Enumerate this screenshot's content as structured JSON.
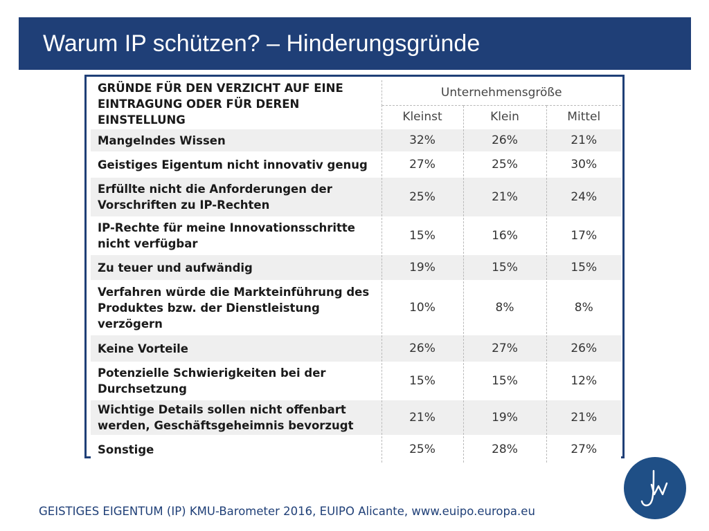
{
  "slide": {
    "title": "Warum IP schützen? – Hinderungsgründe",
    "footer": "GEISTIGES EIGENTUM (IP) KMU-Barometer 2016, EUIPO Alicante, www.euipo.europa.eu",
    "logo_icon": "jw-monogram-logo"
  },
  "table": {
    "header_label": "GRÜNDE FÜR DEN VERZICHT AUF EINE EINTRAGUNG ODER FÜR DEREN EINSTELLUNG",
    "group_header": "Unternehmensgröße",
    "columns": [
      "Kleinst",
      "Klein",
      "Mittel"
    ],
    "rows": [
      {
        "label": "Mangelndes Wissen",
        "values": [
          "32%",
          "26%",
          "21%"
        ]
      },
      {
        "label": "Geistiges Eigentum nicht innovativ genug",
        "values": [
          "27%",
          "25%",
          "30%"
        ]
      },
      {
        "label": "Erfüllte nicht die Anforderungen der Vorschriften zu IP-Rechten",
        "values": [
          "25%",
          "21%",
          "24%"
        ]
      },
      {
        "label": "IP-Rechte für meine Innovationsschritte nicht verfügbar",
        "values": [
          "15%",
          "16%",
          "17%"
        ]
      },
      {
        "label": "Zu teuer und aufwändig",
        "values": [
          "19%",
          "15%",
          "15%"
        ]
      },
      {
        "label": "Verfahren würde die Markteinführung des Produktes bzw. der Dienstleistung verzögern",
        "values": [
          "10%",
          "8%",
          "8%"
        ]
      },
      {
        "label": "Keine Vorteile",
        "values": [
          "26%",
          "27%",
          "26%"
        ]
      },
      {
        "label": "Potenzielle Schwierigkeiten bei der Durchsetzung",
        "values": [
          "15%",
          "15%",
          "12%"
        ]
      },
      {
        "label": "Wichtige Details sollen nicht offenbart werden, Geschäftsgeheimnis bevorzugt",
        "values": [
          "21%",
          "19%",
          "21%"
        ]
      },
      {
        "label": "Sonstige",
        "values": [
          "25%",
          "28%",
          "27%"
        ]
      }
    ]
  }
}
